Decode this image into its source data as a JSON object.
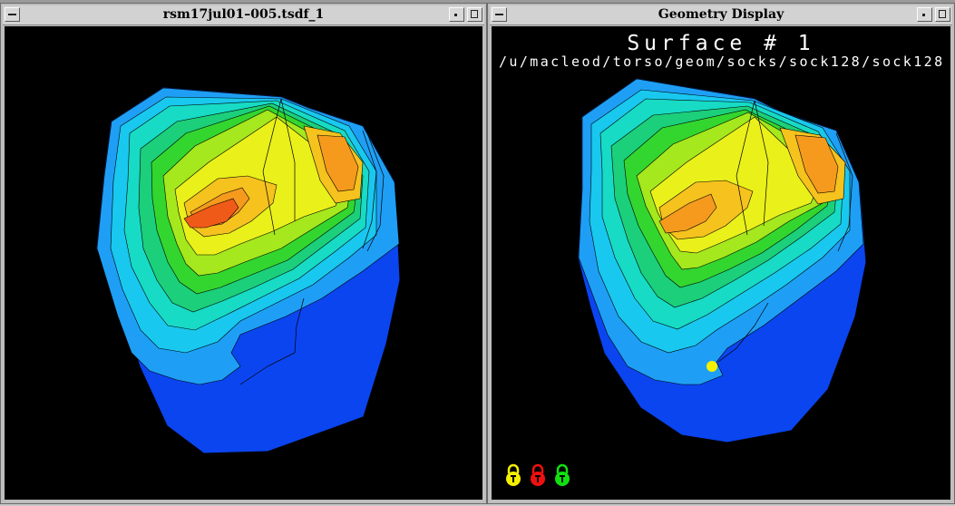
{
  "left_window": {
    "title": "rsm17jul01–005.tsdf_1"
  },
  "right_window": {
    "title": "Geometry Display",
    "surface_label": "Surface # 1",
    "surface_path": "/u/macleod/torso/geom/socks/sock128/sock128"
  },
  "window_buttons": [
    "window-menu-icon",
    "minimize-icon",
    "maximize-icon"
  ],
  "lock_icons": [
    {
      "name": "yellow-lock-icon",
      "color": "#f5f000"
    },
    {
      "name": "red-lock-icon",
      "color": "#f01010"
    },
    {
      "name": "green-lock-icon",
      "color": "#10e010"
    }
  ],
  "palette": {
    "background": "#000000",
    "deep_blue": "#0b45f0",
    "light_blue": "#1e9ff5",
    "cyan": "#19c8ee",
    "aqua": "#17dbc4",
    "teal_green": "#1ccf7a",
    "green": "#33d62e",
    "yellow_green": "#a4e81d",
    "yellow": "#eaf01a",
    "gold": "#f5c21e",
    "orange": "#f59a1d",
    "red_orange": "#f05a18",
    "probe_marker": "#f5f000"
  }
}
